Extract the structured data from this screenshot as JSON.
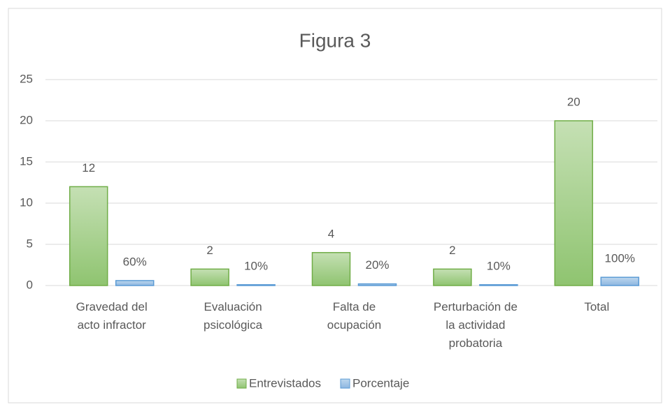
{
  "chart_data": {
    "type": "bar",
    "title": "Figura 3",
    "categories": [
      "Gravedad del acto infractor",
      "Evaluación psicológica",
      "Falta de ocupación",
      "Perturbación de la actividad probatoria",
      "Total"
    ],
    "series": [
      {
        "name": "Entrevistados",
        "color": "#a9d18e",
        "stroke": "#70ad47",
        "values": [
          12,
          2,
          4,
          2,
          20
        ]
      },
      {
        "name": "Porcentaje",
        "color": "#9dc3e6",
        "stroke": "#5b9bd5",
        "values": [
          0.6,
          0.1,
          0.2,
          0.1,
          1
        ],
        "value_labels": [
          "60%",
          "10%",
          "20%",
          "10%",
          "100%"
        ]
      }
    ],
    "ylim": [
      0,
      25
    ],
    "yticks": [
      0,
      5,
      10,
      15,
      20,
      25
    ],
    "grid": true,
    "legend": "bottom"
  }
}
